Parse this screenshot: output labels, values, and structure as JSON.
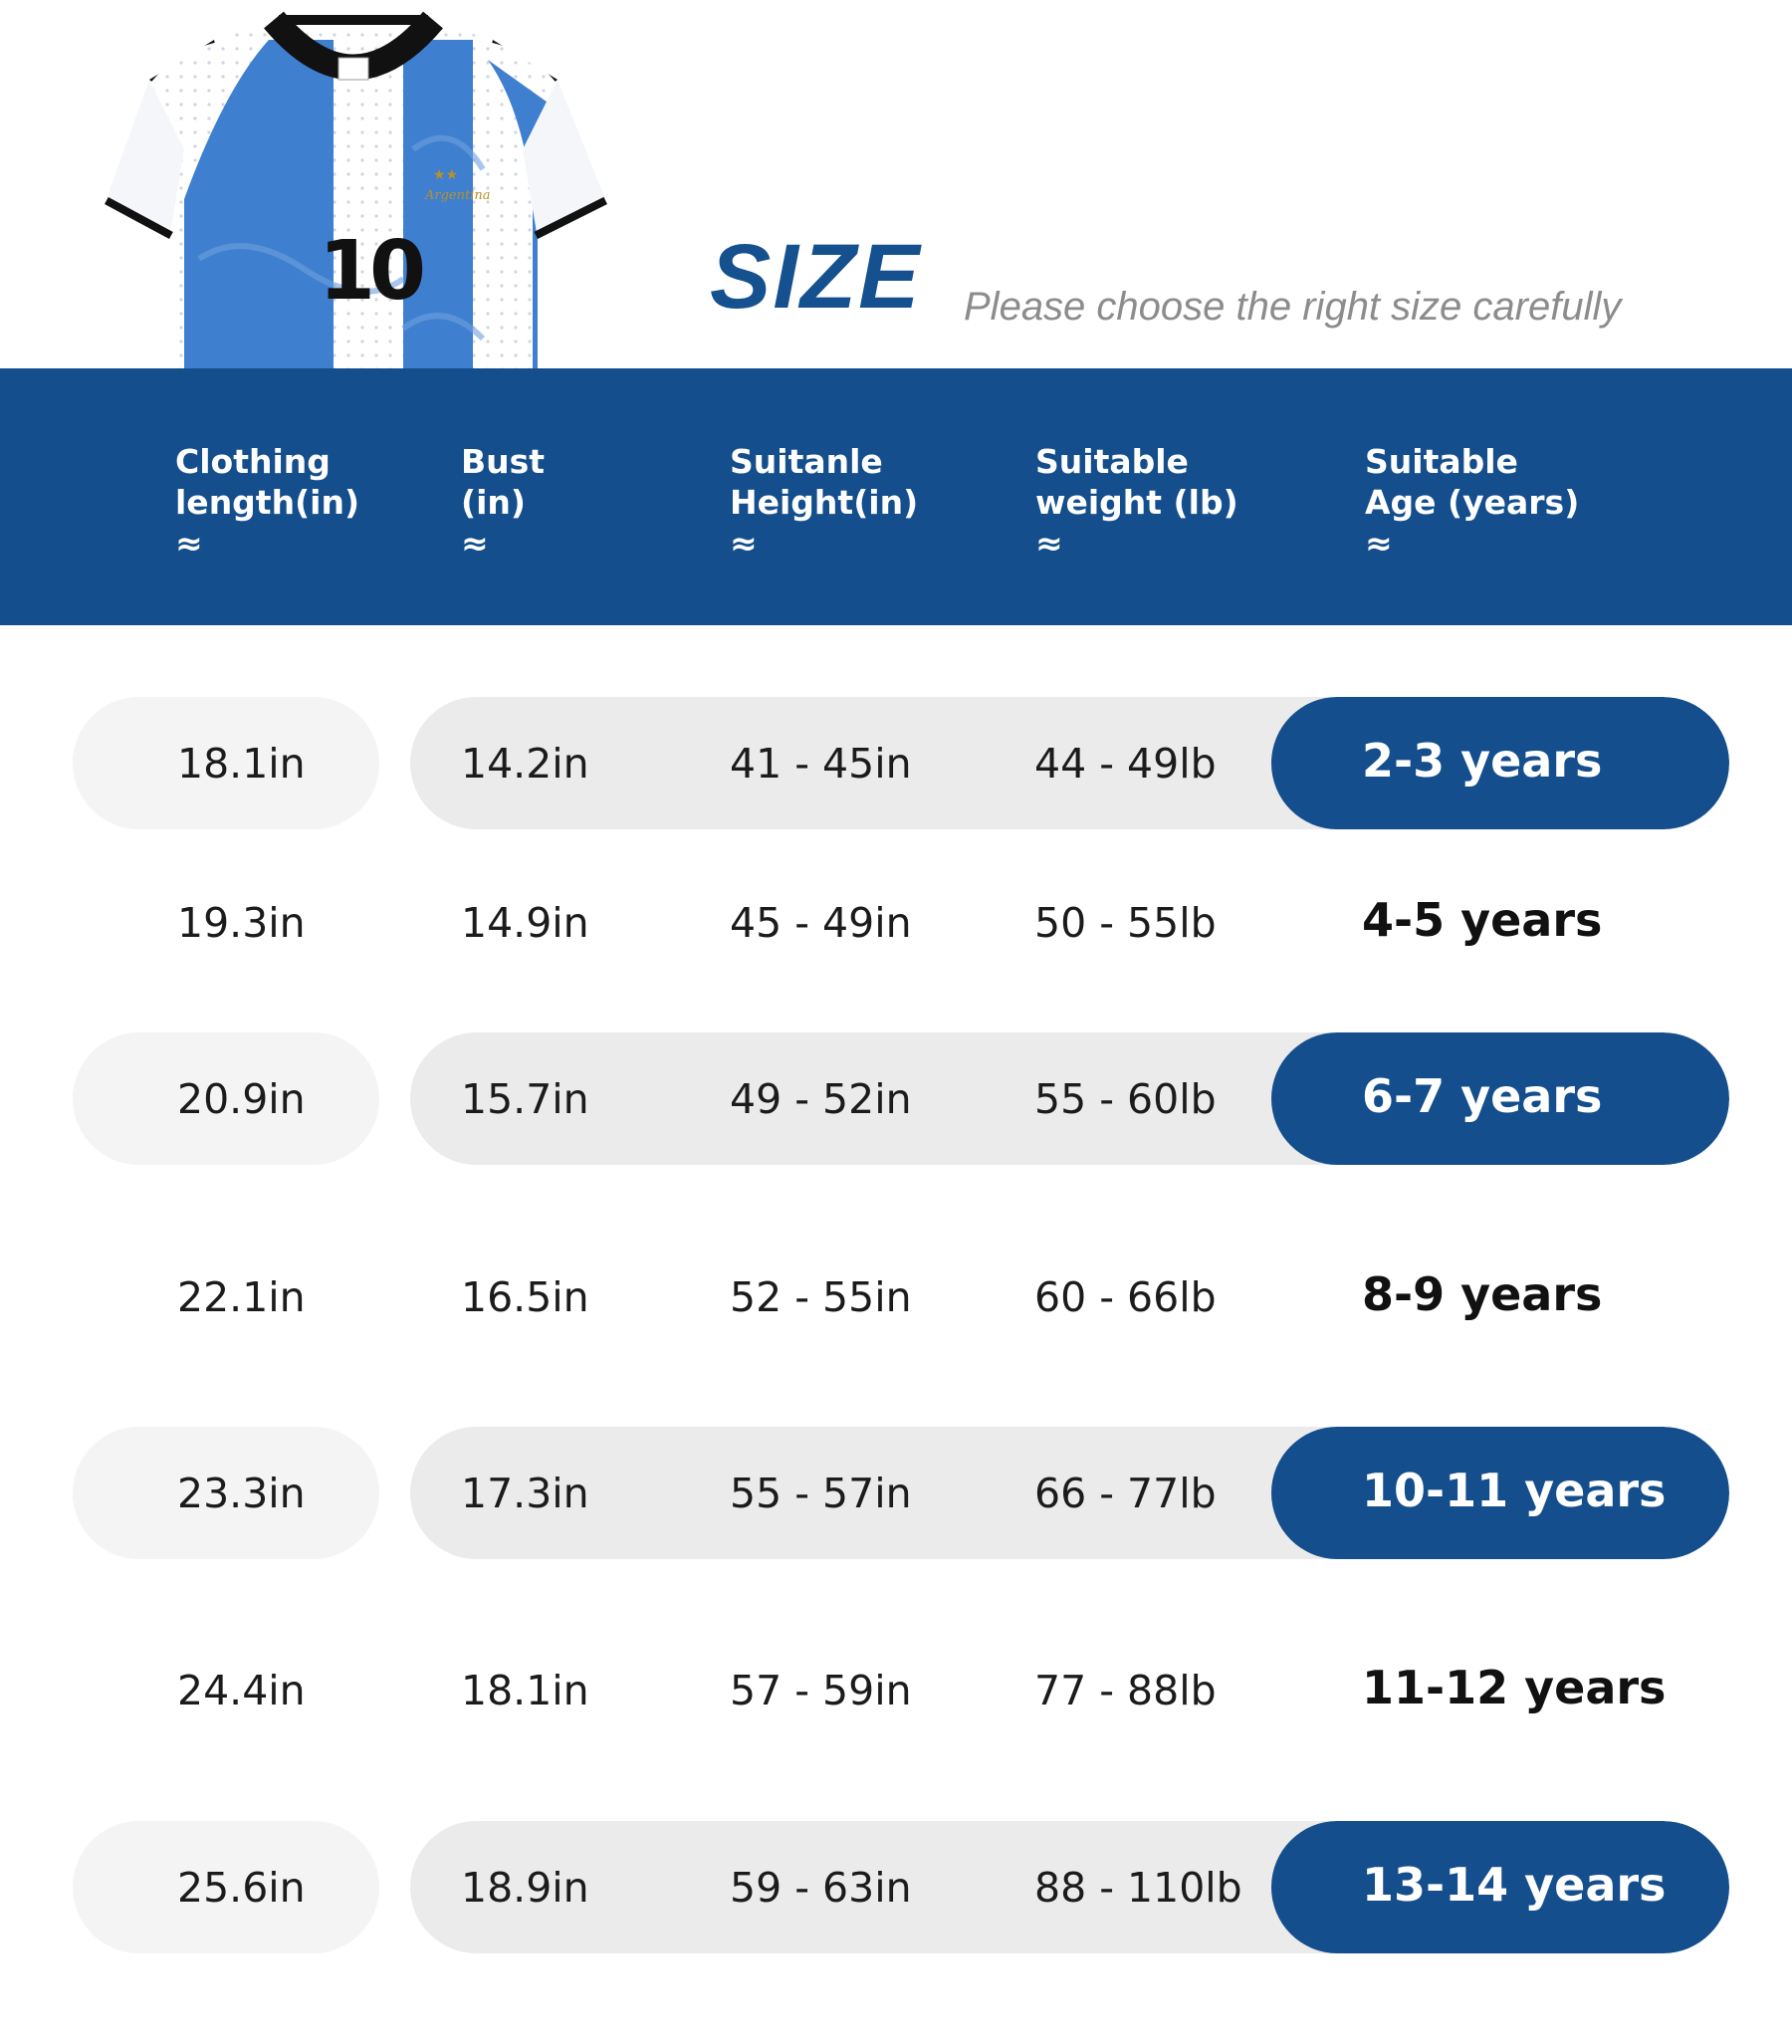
{
  "header": {
    "title": "SIZE",
    "subtitle": "Please choose the right size carefully"
  },
  "jersey": {
    "number": "10"
  },
  "columns": [
    {
      "line1": "Clothing",
      "line2": "length(in)",
      "approx": "≈"
    },
    {
      "line1": "Bust",
      "line2": "(in)",
      "approx": "≈"
    },
    {
      "line1": "Suitanle",
      "line2": "Height(in)",
      "approx": "≈"
    },
    {
      "line1": "Suitable",
      "line2": "weight (lb)",
      "approx": "≈"
    },
    {
      "line1": "Suitable",
      "line2": "Age (years)",
      "approx": "≈"
    }
  ],
  "rows": [
    {
      "length": "18.1in",
      "bust": "14.2in",
      "height": "41 - 45in",
      "weight": "44 - 49lb",
      "age": "2-3 years",
      "highlighted": true
    },
    {
      "length": "19.3in",
      "bust": "14.9in",
      "height": "45 - 49in",
      "weight": "50 - 55lb",
      "age": "4-5 years",
      "highlighted": false
    },
    {
      "length": "20.9in",
      "bust": "15.7in",
      "height": "49 - 52in",
      "weight": "55 - 60lb",
      "age": "6-7 years",
      "highlighted": true
    },
    {
      "length": "22.1in",
      "bust": "16.5in",
      "height": "52 - 55in",
      "weight": "60 - 66lb",
      "age": "8-9 years",
      "highlighted": false
    },
    {
      "length": "23.3in",
      "bust": "17.3in",
      "height": "55 - 57in",
      "weight": "66 - 77lb",
      "age": "10-11 years",
      "highlighted": true
    },
    {
      "length": "24.4in",
      "bust": "18.1in",
      "height": "57 - 59in",
      "weight": "77 - 88lb",
      "age": "11-12 years",
      "highlighted": false
    },
    {
      "length": "25.6in",
      "bust": "18.9in",
      "height": "59 - 63in",
      "weight": "88 - 110lb",
      "age": "13-14 years",
      "highlighted": true
    }
  ],
  "colors": {
    "brand_blue": "#144e8c",
    "title_blue": "#15508f",
    "pill_light": "#f4f4f4",
    "pill_gray": "#ebebeb"
  }
}
